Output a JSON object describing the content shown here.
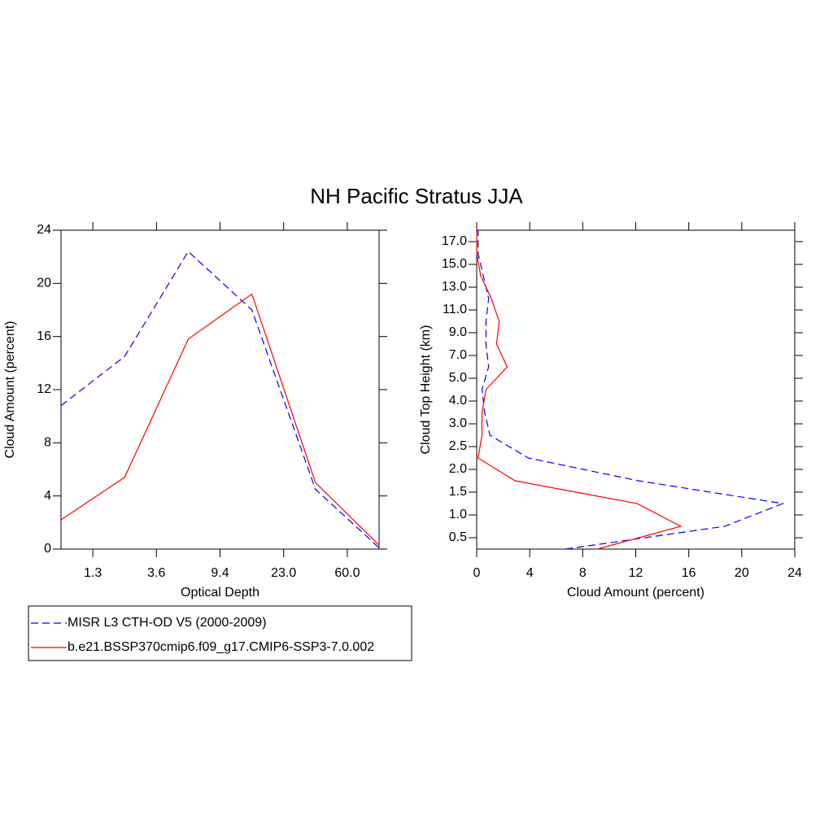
{
  "title": "NH Pacific Stratus JJA",
  "chart_data": [
    {
      "type": "line",
      "xlabel": "Optical Depth",
      "ylabel": "Cloud Amount (percent)",
      "x": [
        0,
        1,
        2,
        3,
        4,
        5
      ],
      "xlim": [
        0,
        5
      ],
      "xticks": [
        {
          "value": 0.5,
          "label": "1.3"
        },
        {
          "value": 1.5,
          "label": "3.6"
        },
        {
          "value": 2.5,
          "label": "9.4"
        },
        {
          "value": 3.5,
          "label": "23.0"
        },
        {
          "value": 4.5,
          "label": "60.0"
        }
      ],
      "ylim": [
        0,
        24
      ],
      "yticks": [
        0,
        4,
        8,
        12,
        16,
        20,
        24
      ],
      "series": [
        {
          "name": "MISR L3 CTH-OD V5 (2000-2009)",
          "color": "#0000ff",
          "dashed": true,
          "values": [
            10.8,
            14.5,
            22.4,
            18.0,
            4.5,
            0.1
          ]
        },
        {
          "name": "b.e21.BSSP370cmip6.f09_g17.CMIP6-SSP3-7.0.002",
          "color": "#ff0000",
          "dashed": false,
          "values": [
            2.2,
            5.4,
            15.8,
            19.2,
            5.0,
            0.3
          ]
        }
      ]
    },
    {
      "type": "line",
      "xlabel": "Cloud Amount (percent)",
      "ylabel": "Cloud Top Height (km)",
      "y": [
        -0.5,
        0.5,
        1.5,
        2.5,
        3.5,
        4.5,
        5.5,
        6.5,
        7.5,
        8.5,
        9.5,
        10.5,
        11.5,
        12.5,
        13.5
      ],
      "xlim": [
        0,
        24
      ],
      "xticks": [
        0,
        4,
        8,
        12,
        16,
        20,
        24
      ],
      "ylim": [
        -0.5,
        13.5
      ],
      "yticks": [
        {
          "value": 0,
          "label": "0.5"
        },
        {
          "value": 1,
          "label": "1.0"
        },
        {
          "value": 2,
          "label": "1.5"
        },
        {
          "value": 3,
          "label": "2.0"
        },
        {
          "value": 4,
          "label": "2.5"
        },
        {
          "value": 5,
          "label": "3.0"
        },
        {
          "value": 6,
          "label": "4.0"
        },
        {
          "value": 7,
          "label": "5.0"
        },
        {
          "value": 8,
          "label": "7.0"
        },
        {
          "value": 9,
          "label": "9.0"
        },
        {
          "value": 10,
          "label": "11.0"
        },
        {
          "value": 11,
          "label": "13.0"
        },
        {
          "value": 12,
          "label": "15.0"
        },
        {
          "value": 13,
          "label": "17.0"
        }
      ],
      "series": [
        {
          "color": "#0000ff",
          "dashed": true,
          "values": [
            6.7,
            18.7,
            23.1,
            12.2,
            3.9,
            1.0,
            0.6,
            0.4,
            0.9,
            0.7,
            0.7,
            0.9,
            0.5,
            0.1,
            0.1
          ]
        },
        {
          "color": "#ff0000",
          "dashed": false,
          "values": [
            9.1,
            15.4,
            12.1,
            2.9,
            0.1,
            0.4,
            0.4,
            0.7,
            2.3,
            1.5,
            1.7,
            1.1,
            0.3,
            0.0,
            0.0
          ]
        }
      ]
    }
  ]
}
